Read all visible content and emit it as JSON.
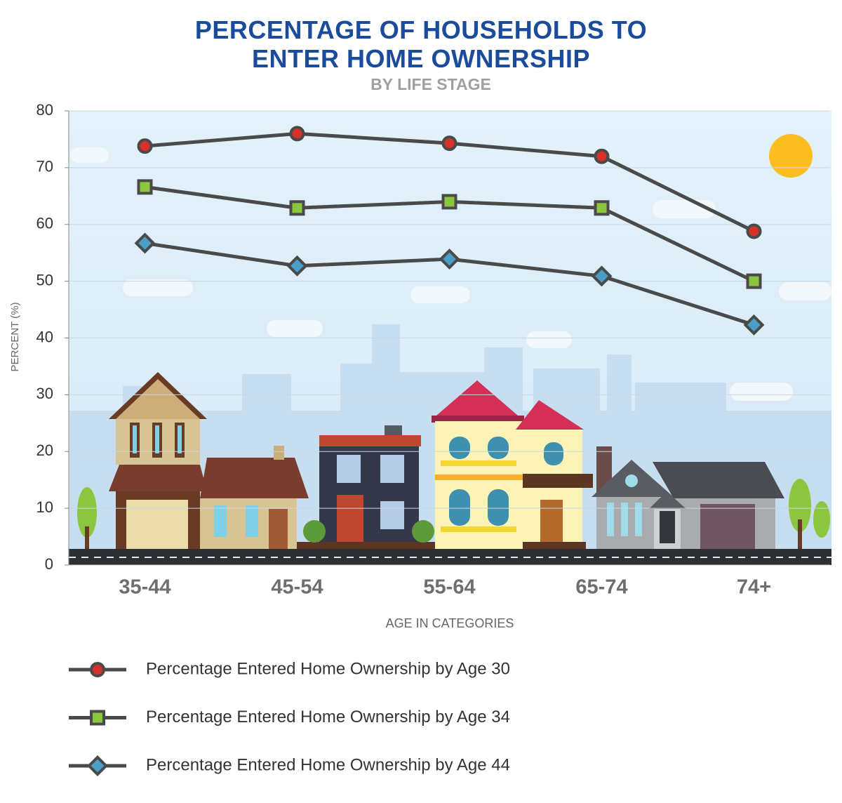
{
  "chart_data": {
    "type": "line",
    "title": "PERCENTAGE OF HOUSEHOLDS TO ENTER HOME OWNERSHIP",
    "subtitle": "BY LIFE STAGE",
    "y_label": "PERCENT (%)",
    "x_label": "AGE IN CATEGORIES",
    "categories": [
      "35-44",
      "45-54",
      "55-64",
      "65-74",
      "74+"
    ],
    "series": [
      {
        "name": "Percentage Entered Home Ownership by Age 30",
        "color": "#d6312b",
        "marker": "circle",
        "values": [
          73.8,
          76.0,
          74.3,
          72.0,
          58.8
        ]
      },
      {
        "name": "Percentage Entered Home Ownership by Age 34",
        "color": "#8cc63e",
        "marker": "square",
        "values": [
          66.6,
          62.9,
          64.0,
          62.9,
          50.0
        ]
      },
      {
        "name": "Percentage Entered Home Ownership by Age 44",
        "color": "#4a9ec8",
        "marker": "diamond",
        "values": [
          56.7,
          52.7,
          53.9,
          50.9,
          42.3
        ]
      }
    ],
    "line_color": "#4a4a4a",
    "ylim": [
      0,
      80
    ],
    "yticks": [
      0,
      10,
      20,
      30,
      40,
      50,
      60,
      70,
      80
    ],
    "grid": true
  }
}
